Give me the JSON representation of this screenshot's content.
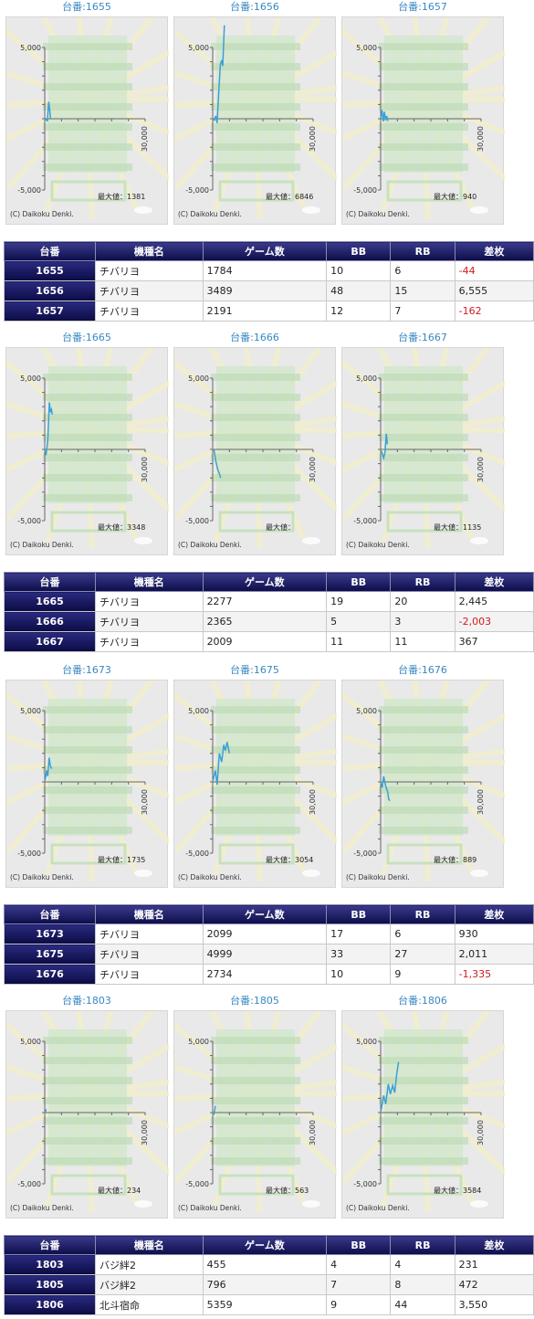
{
  "groups": [
    {
      "charts": [
        {
          "title": "台番:1655",
          "max_label": "最大値：1381",
          "series": [
            [
              0,
              0
            ],
            [
              800,
              -150
            ],
            [
              1200,
              1200
            ],
            [
              1500,
              600
            ],
            [
              1784,
              -44
            ]
          ]
        },
        {
          "title": "台番:1656",
          "max_label": "最大値：6846",
          "series": [
            [
              0,
              0
            ],
            [
              500,
              -100
            ],
            [
              900,
              200
            ],
            [
              1300,
              -300
            ],
            [
              1800,
              1800
            ],
            [
              2300,
              3800
            ],
            [
              2700,
              4100
            ],
            [
              3000,
              3700
            ],
            [
              3200,
              4800
            ],
            [
              3489,
              6555
            ]
          ]
        },
        {
          "title": "台番:1657",
          "max_label": "最大値：940",
          "series": [
            [
              0,
              0
            ],
            [
              400,
              600
            ],
            [
              800,
              -200
            ],
            [
              1100,
              500
            ],
            [
              1500,
              -100
            ],
            [
              1800,
              200
            ],
            [
              2191,
              -162
            ]
          ]
        }
      ],
      "table": {
        "headers": [
          "台番",
          "機種名",
          "ゲーム数",
          "BB",
          "RB",
          "差枚"
        ],
        "rows": [
          [
            "1655",
            "チバリヨ",
            "1784",
            "10",
            "6",
            "-44"
          ],
          [
            "1656",
            "チバリヨ",
            "3489",
            "48",
            "15",
            "6,555"
          ],
          [
            "1657",
            "チバリヨ",
            "2191",
            "12",
            "7",
            "-162"
          ]
        ]
      }
    },
    {
      "charts": [
        {
          "title": "台番:1665",
          "max_label": "最大値：3348",
          "series": [
            [
              0,
              0
            ],
            [
              400,
              -400
            ],
            [
              900,
              600
            ],
            [
              1400,
              3300
            ],
            [
              1700,
              2600
            ],
            [
              2000,
              2800
            ],
            [
              2277,
              2445
            ]
          ]
        },
        {
          "title": "台番:1666",
          "max_label": "最大値：",
          "series": [
            [
              0,
              0
            ],
            [
              500,
              -100
            ],
            [
              900,
              -800
            ],
            [
              1500,
              -1400
            ],
            [
              2000,
              -1700
            ],
            [
              2365,
              -2003
            ]
          ]
        },
        {
          "title": "台番:1667",
          "max_label": "最大値：1135",
          "series": [
            [
              0,
              0
            ],
            [
              500,
              -300
            ],
            [
              900,
              -600
            ],
            [
              1300,
              -200
            ],
            [
              1700,
              1100
            ],
            [
              2009,
              367
            ]
          ]
        }
      ],
      "table": {
        "headers": [
          "台番",
          "機種名",
          "ゲーム数",
          "BB",
          "RB",
          "差枚"
        ],
        "rows": [
          [
            "1665",
            "チバリヨ",
            "2277",
            "19",
            "20",
            "2,445"
          ],
          [
            "1666",
            "チバリヨ",
            "2365",
            "5",
            "3",
            "-2,003"
          ],
          [
            "1667",
            "チバリヨ",
            "2009",
            "11",
            "11",
            "367"
          ]
        ]
      }
    },
    {
      "charts": [
        {
          "title": "台番:1673",
          "max_label": "最大値：1735",
          "series": [
            [
              0,
              0
            ],
            [
              600,
              800
            ],
            [
              900,
              400
            ],
            [
              1300,
              1700
            ],
            [
              1700,
              1100
            ],
            [
              2099,
              930
            ]
          ]
        },
        {
          "title": "台番:1675",
          "max_label": "最大値：3054",
          "series": [
            [
              0,
              0
            ],
            [
              800,
              800
            ],
            [
              1300,
              -200
            ],
            [
              2000,
              2000
            ],
            [
              2700,
              1400
            ],
            [
              3300,
              2600
            ],
            [
              3800,
              2200
            ],
            [
              4300,
              2800
            ],
            [
              4999,
              2011
            ]
          ]
        },
        {
          "title": "台番:1676",
          "max_label": "最大値：889",
          "series": [
            [
              0,
              0
            ],
            [
              500,
              -400
            ],
            [
              900,
              400
            ],
            [
              1500,
              -300
            ],
            [
              2100,
              -700
            ],
            [
              2400,
              -1200
            ],
            [
              2734,
              -1335
            ]
          ]
        }
      ],
      "table": {
        "headers": [
          "台番",
          "機種名",
          "ゲーム数",
          "BB",
          "RB",
          "差枚"
        ],
        "rows": [
          [
            "1673",
            "チバリヨ",
            "2099",
            "17",
            "6",
            "930"
          ],
          [
            "1675",
            "チバリヨ",
            "4999",
            "33",
            "27",
            "2,011"
          ],
          [
            "1676",
            "チバリヨ",
            "2734",
            "10",
            "9",
            "-1,335"
          ]
        ]
      }
    },
    {
      "charts": [
        {
          "title": "台番:1803",
          "max_label": "最大値：234",
          "series": [
            [
              0,
              0
            ],
            [
              250,
              100
            ],
            [
              455,
              231
            ]
          ]
        },
        {
          "title": "台番:1805",
          "max_label": "最大値：563",
          "series": [
            [
              0,
              0
            ],
            [
              400,
              -100
            ],
            [
              700,
              300
            ],
            [
              796,
              472
            ]
          ]
        },
        {
          "title": "台番:1806",
          "max_label": "最大値：3584",
          "series": [
            [
              0,
              0
            ],
            [
              900,
              1200
            ],
            [
              1500,
              600
            ],
            [
              2300,
              2000
            ],
            [
              2900,
              1300
            ],
            [
              3600,
              1900
            ],
            [
              4200,
              1400
            ],
            [
              4800,
              2700
            ],
            [
              5359,
              3550
            ]
          ]
        }
      ],
      "table": {
        "headers": [
          "台番",
          "機種名",
          "ゲーム数",
          "BB",
          "RB",
          "差枚"
        ],
        "rows": [
          [
            "1803",
            "バジ絆2",
            "455",
            "4",
            "4",
            "231"
          ],
          [
            "1805",
            "バジ絆2",
            "796",
            "7",
            "8",
            "472"
          ],
          [
            "1806",
            "北斗宿命",
            "5359",
            "9",
            "44",
            "3,550"
          ]
        ]
      }
    }
  ],
  "chart_data": {
    "type": "line",
    "x_tick_label": "30,000",
    "y_ticks": [
      "5,000",
      "-5,000"
    ],
    "xlim": [
      0,
      30000
    ],
    "ylim": [
      -5000,
      5000
    ],
    "copyright": "(C) Daikoku Denki.",
    "line_color": "#3aa0d8"
  }
}
